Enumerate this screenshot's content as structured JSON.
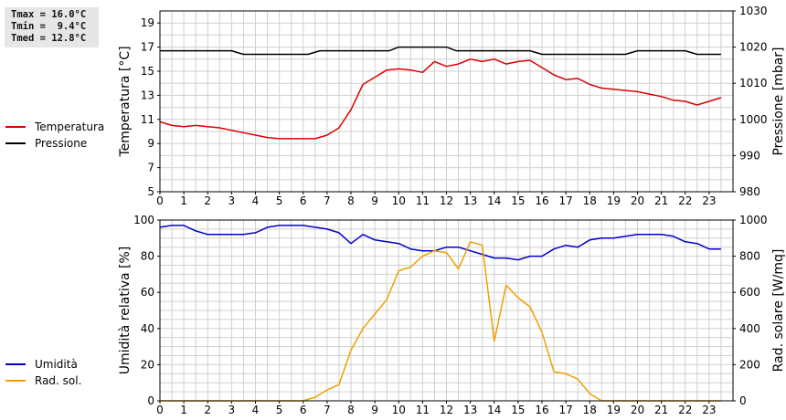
{
  "stats": {
    "tmax": "Tmax = 16.0°C",
    "tmin": "Tmin =  9.4°C",
    "tmed": "Tmed = 12.8°C"
  },
  "colors": {
    "temperature": "#dd0000",
    "pressure": "#000000",
    "humidity": "#0000cc",
    "solar": "#f0a000",
    "grid": "#d0d0d0"
  },
  "chart_data": [
    {
      "type": "line",
      "xlim": [
        0,
        24
      ],
      "x_ticks": [
        0,
        1,
        2,
        3,
        4,
        5,
        6,
        7,
        8,
        9,
        10,
        11,
        12,
        13,
        14,
        15,
        16,
        17,
        18,
        19,
        20,
        21,
        22,
        23
      ],
      "y_left": {
        "label": "Temperatura [°C]",
        "lim": [
          5,
          20
        ],
        "ticks": [
          5,
          7,
          9,
          11,
          13,
          15,
          17,
          19
        ]
      },
      "y_right": {
        "label": "Pressione [mbar]",
        "lim": [
          980,
          1030
        ],
        "ticks": [
          980,
          990,
          1000,
          1010,
          1020,
          1030
        ]
      },
      "grid": true,
      "legend_position": "left",
      "series": [
        {
          "name": "Temperatura",
          "axis": "left",
          "points": [
            [
              0,
              10.8
            ],
            [
              0.5,
              10.5
            ],
            [
              1,
              10.4
            ],
            [
              1.5,
              10.5
            ],
            [
              2,
              10.4
            ],
            [
              2.5,
              10.3
            ],
            [
              3,
              10.1
            ],
            [
              3.5,
              9.9
            ],
            [
              4,
              9.7
            ],
            [
              4.5,
              9.5
            ],
            [
              5,
              9.4
            ],
            [
              5.5,
              9.4
            ],
            [
              6,
              9.4
            ],
            [
              6.5,
              9.4
            ],
            [
              7,
              9.7
            ],
            [
              7.5,
              10.3
            ],
            [
              8,
              11.8
            ],
            [
              8.5,
              13.9
            ],
            [
              9,
              14.5
            ],
            [
              9.5,
              15.1
            ],
            [
              10,
              15.2
            ],
            [
              10.5,
              15.1
            ],
            [
              11,
              14.9
            ],
            [
              11.5,
              15.8
            ],
            [
              12,
              15.4
            ],
            [
              12.5,
              15.6
            ],
            [
              13,
              16.0
            ],
            [
              13.5,
              15.8
            ],
            [
              14,
              16.0
            ],
            [
              14.5,
              15.6
            ],
            [
              15,
              15.8
            ],
            [
              15.5,
              15.9
            ],
            [
              16,
              15.3
            ],
            [
              16.5,
              14.7
            ],
            [
              17,
              14.3
            ],
            [
              17.5,
              14.4
            ],
            [
              18,
              13.9
            ],
            [
              18.5,
              13.6
            ],
            [
              19,
              13.5
            ],
            [
              19.5,
              13.4
            ],
            [
              20,
              13.3
            ],
            [
              20.5,
              13.1
            ],
            [
              21,
              12.9
            ],
            [
              21.5,
              12.6
            ],
            [
              22,
              12.5
            ],
            [
              22.5,
              12.2
            ],
            [
              23,
              12.5
            ],
            [
              23.5,
              12.8
            ]
          ]
        },
        {
          "name": "Pressione",
          "axis": "right",
          "points": [
            [
              0,
              1019
            ],
            [
              3,
              1019
            ],
            [
              3.5,
              1018
            ],
            [
              6.2,
              1018
            ],
            [
              6.7,
              1019
            ],
            [
              9.6,
              1019
            ],
            [
              10,
              1020
            ],
            [
              12,
              1020
            ],
            [
              12.4,
              1019
            ],
            [
              15.5,
              1019
            ],
            [
              16,
              1018
            ],
            [
              19.5,
              1018
            ],
            [
              20,
              1019
            ],
            [
              22,
              1019
            ],
            [
              22.5,
              1018
            ],
            [
              23.5,
              1018
            ]
          ]
        }
      ]
    },
    {
      "type": "line",
      "xlim": [
        0,
        24
      ],
      "x_ticks": [
        0,
        1,
        2,
        3,
        4,
        5,
        6,
        7,
        8,
        9,
        10,
        11,
        12,
        13,
        14,
        15,
        16,
        17,
        18,
        19,
        20,
        21,
        22,
        23
      ],
      "y_left": {
        "label": "Umidità relativa [%]",
        "lim": [
          0,
          100
        ],
        "ticks": [
          0,
          20,
          40,
          60,
          80,
          100
        ]
      },
      "y_right": {
        "label": "Rad. solare [W/mq]",
        "lim": [
          0,
          1000
        ],
        "ticks": [
          0,
          200,
          400,
          600,
          800,
          1000
        ]
      },
      "grid": true,
      "legend_position": "left",
      "series": [
        {
          "name": "Umidità",
          "axis": "left",
          "points": [
            [
              0,
              96
            ],
            [
              0.5,
              97
            ],
            [
              1,
              97
            ],
            [
              1.5,
              94
            ],
            [
              2,
              92
            ],
            [
              2.5,
              92
            ],
            [
              3,
              92
            ],
            [
              3.5,
              92
            ],
            [
              4,
              93
            ],
            [
              4.5,
              96
            ],
            [
              5,
              97
            ],
            [
              5.5,
              97
            ],
            [
              6,
              97
            ],
            [
              6.5,
              96
            ],
            [
              7,
              95
            ],
            [
              7.5,
              93
            ],
            [
              8,
              87
            ],
            [
              8.5,
              92
            ],
            [
              9,
              89
            ],
            [
              9.5,
              88
            ],
            [
              10,
              87
            ],
            [
              10.5,
              84
            ],
            [
              11,
              83
            ],
            [
              11.5,
              83
            ],
            [
              12,
              85
            ],
            [
              12.5,
              85
            ],
            [
              13,
              83
            ],
            [
              13.5,
              81
            ],
            [
              14,
              79
            ],
            [
              14.5,
              79
            ],
            [
              15,
              78
            ],
            [
              15.5,
              80
            ],
            [
              16,
              80
            ],
            [
              16.5,
              84
            ],
            [
              17,
              86
            ],
            [
              17.5,
              85
            ],
            [
              18,
              89
            ],
            [
              18.5,
              90
            ],
            [
              19,
              90
            ],
            [
              19.5,
              91
            ],
            [
              20,
              92
            ],
            [
              20.5,
              92
            ],
            [
              21,
              92
            ],
            [
              21.5,
              91
            ],
            [
              22,
              88
            ],
            [
              22.5,
              87
            ],
            [
              23,
              84
            ],
            [
              23.5,
              84
            ]
          ]
        },
        {
          "name": "Rad. sol.",
          "axis": "right",
          "points": [
            [
              0,
              0
            ],
            [
              6,
              0
            ],
            [
              6.5,
              20
            ],
            [
              7,
              60
            ],
            [
              7.5,
              90
            ],
            [
              8,
              280
            ],
            [
              8.5,
              400
            ],
            [
              9,
              480
            ],
            [
              9.5,
              560
            ],
            [
              10,
              720
            ],
            [
              10.5,
              740
            ],
            [
              11,
              800
            ],
            [
              11.5,
              830
            ],
            [
              12,
              820
            ],
            [
              12.5,
              730
            ],
            [
              13,
              880
            ],
            [
              13.5,
              860
            ],
            [
              14,
              330
            ],
            [
              14.5,
              640
            ],
            [
              15,
              570
            ],
            [
              15.5,
              520
            ],
            [
              16,
              380
            ],
            [
              16.5,
              160
            ],
            [
              17,
              150
            ],
            [
              17.5,
              120
            ],
            [
              18,
              40
            ],
            [
              18.5,
              0
            ],
            [
              23.5,
              0
            ]
          ]
        }
      ]
    }
  ]
}
